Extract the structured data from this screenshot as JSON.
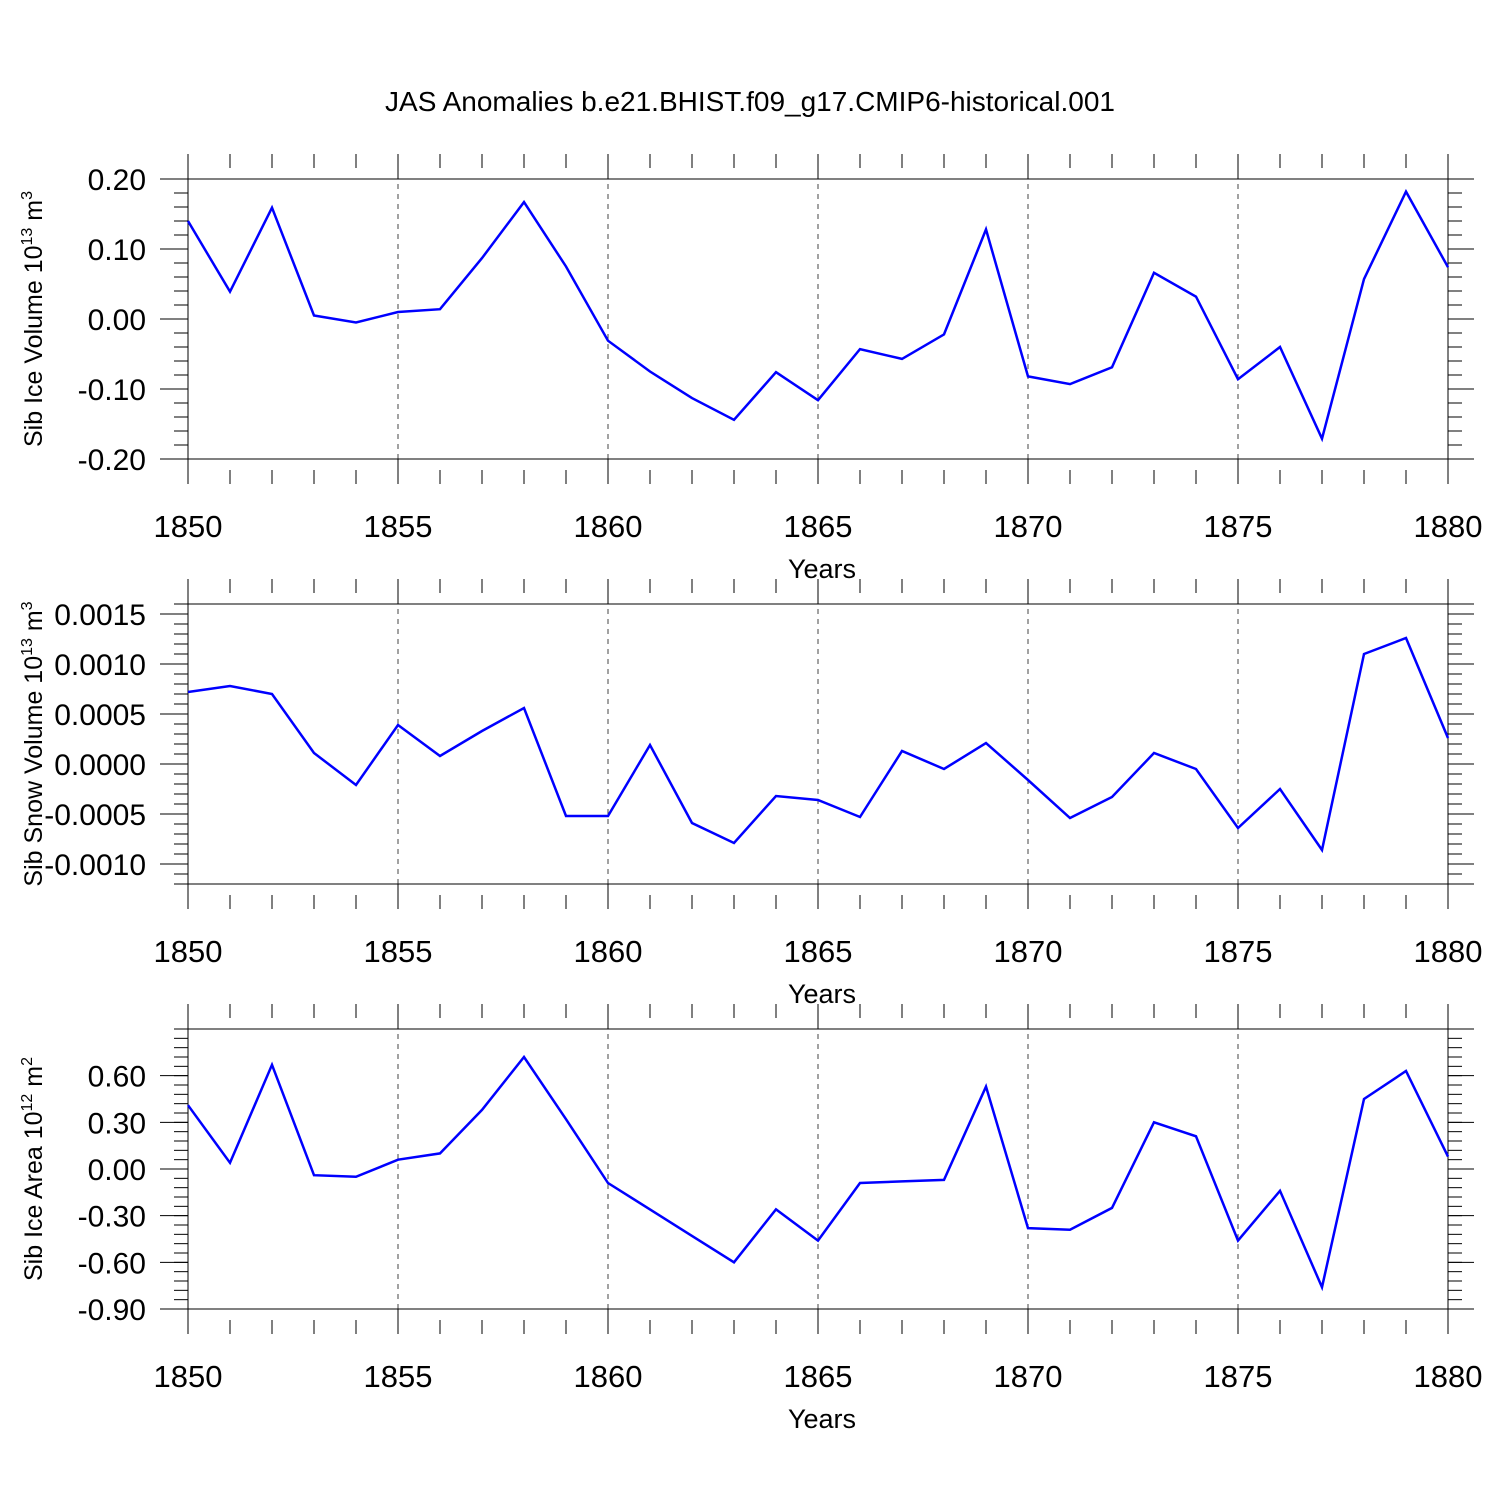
{
  "title": "JAS Anomalies b.e21.BHIST.f09_g17.CMIP6-historical.001",
  "line_color": "#0000ff",
  "chart_data": [
    {
      "type": "line",
      "title": "",
      "xlabel": "Years",
      "ylabel": {
        "prefix": "Sib Ice Volume 10",
        "sup": "13",
        "unit": " m",
        "unit_sup": "3"
      },
      "xlim": [
        1850,
        1880
      ],
      "ylim": [
        -0.2,
        0.2
      ],
      "xticks": [
        1850,
        1855,
        1860,
        1865,
        1870,
        1875,
        1880
      ],
      "yticks": [
        -0.2,
        -0.1,
        0.0,
        0.1,
        0.2
      ],
      "yticklabels": [
        "-0.20",
        "-0.10",
        "0.00",
        "0.10",
        "0.20"
      ],
      "x": [
        1850,
        1851,
        1852,
        1853,
        1854,
        1855,
        1856,
        1857,
        1858,
        1859,
        1860,
        1861,
        1862,
        1863,
        1864,
        1865,
        1866,
        1867,
        1868,
        1869,
        1870,
        1871,
        1872,
        1873,
        1874,
        1875,
        1876,
        1877,
        1878,
        1879,
        1880
      ],
      "series": [
        {
          "name": "Sib Ice Volume",
          "values": [
            0.14,
            0.039,
            0.159,
            0.005,
            -0.005,
            0.01,
            0.014,
            0.087,
            0.167,
            0.075,
            -0.031,
            -0.075,
            -0.113,
            -0.144,
            -0.076,
            -0.116,
            -0.043,
            -0.057,
            -0.022,
            0.128,
            -0.082,
            -0.093,
            -0.069,
            0.066,
            0.032,
            -0.086,
            -0.04,
            -0.171,
            0.057,
            0.182,
            0.074
          ]
        }
      ]
    },
    {
      "type": "line",
      "title": "",
      "xlabel": "Years",
      "ylabel": {
        "prefix": "Sib Snow Volume 10",
        "sup": "13",
        "unit": " m",
        "unit_sup": "3"
      },
      "xlim": [
        1850,
        1880
      ],
      "ylim": [
        -0.0012,
        0.0016
      ],
      "xticks": [
        1850,
        1855,
        1860,
        1865,
        1870,
        1875,
        1880
      ],
      "yticks": [
        -0.001,
        -0.0005,
        0.0,
        0.0005,
        0.001,
        0.0015
      ],
      "yticklabels": [
        "-0.0010",
        "-0.0005",
        "0.0000",
        "0.0005",
        "0.0010",
        "0.0015"
      ],
      "x": [
        1850,
        1851,
        1852,
        1853,
        1854,
        1855,
        1856,
        1857,
        1858,
        1859,
        1860,
        1861,
        1862,
        1863,
        1864,
        1865,
        1866,
        1867,
        1868,
        1869,
        1870,
        1871,
        1872,
        1873,
        1874,
        1875,
        1876,
        1877,
        1878,
        1879,
        1880
      ],
      "series": [
        {
          "name": "Sib Snow Volume",
          "values": [
            0.00072,
            0.00078,
            0.0007,
            0.00011,
            -0.00021,
            0.00039,
            8e-05,
            0.00033,
            0.00056,
            -0.00052,
            -0.00052,
            0.00019,
            -0.00059,
            -0.00079,
            -0.00032,
            -0.00036,
            -0.00053,
            0.00013,
            -5e-05,
            0.00021,
            -0.00016,
            -0.00054,
            -0.00033,
            0.00011,
            -5e-05,
            -0.00064,
            -0.00025,
            -0.00086,
            0.0011,
            0.00126,
            0.00026
          ]
        }
      ]
    },
    {
      "type": "line",
      "title": "",
      "xlabel": "Years",
      "ylabel": {
        "prefix": "Sib Ice Area 10",
        "sup": "12",
        "unit": " m",
        "unit_sup": "2"
      },
      "xlim": [
        1850,
        1880
      ],
      "ylim": [
        -0.9,
        0.9
      ],
      "xticks": [
        1850,
        1855,
        1860,
        1865,
        1870,
        1875,
        1880
      ],
      "yticks": [
        -0.9,
        -0.6,
        -0.3,
        0.0,
        0.3,
        0.6
      ],
      "yticklabels": [
        "-0.90",
        "-0.60",
        "-0.30",
        "0.00",
        "0.30",
        "0.60"
      ],
      "x": [
        1850,
        1851,
        1852,
        1853,
        1854,
        1855,
        1856,
        1857,
        1858,
        1859,
        1860,
        1861,
        1862,
        1863,
        1864,
        1865,
        1866,
        1867,
        1868,
        1869,
        1870,
        1871,
        1872,
        1873,
        1874,
        1875,
        1876,
        1877,
        1878,
        1879,
        1880
      ],
      "series": [
        {
          "name": "Sib Ice Area",
          "values": [
            0.41,
            0.04,
            0.67,
            -0.04,
            -0.05,
            0.06,
            0.1,
            0.38,
            0.72,
            0.32,
            -0.09,
            -0.26,
            -0.43,
            -0.6,
            -0.26,
            -0.46,
            -0.09,
            -0.08,
            -0.07,
            0.53,
            -0.38,
            -0.39,
            -0.25,
            0.3,
            0.21,
            -0.46,
            -0.14,
            -0.76,
            0.45,
            0.63,
            0.08
          ]
        }
      ]
    }
  ]
}
